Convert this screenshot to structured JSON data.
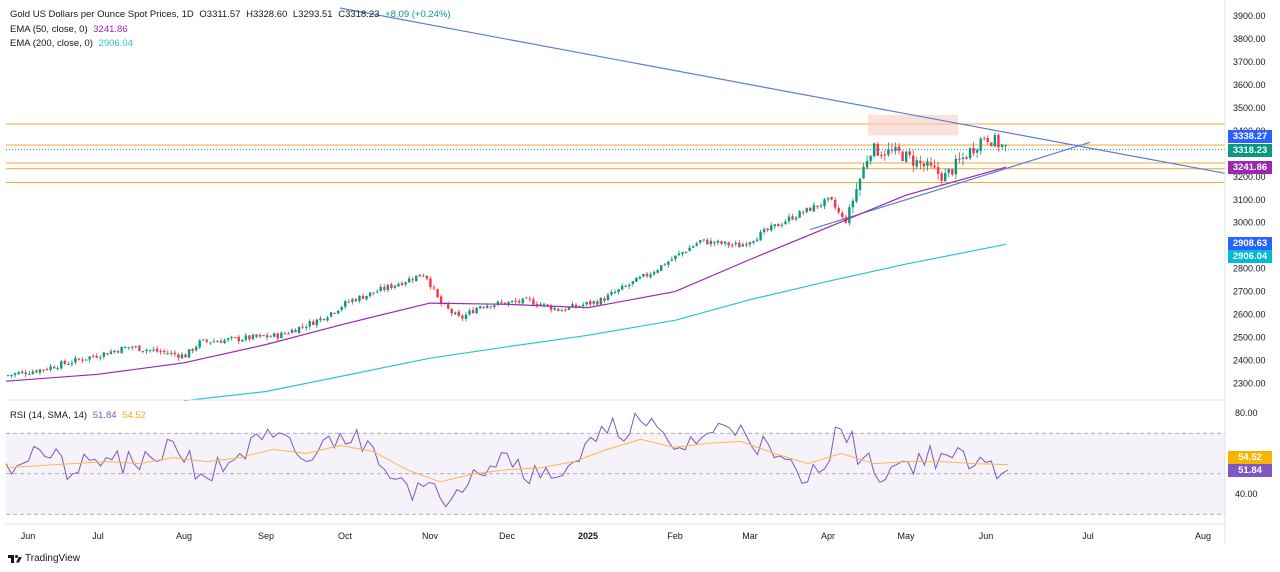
{
  "main_legend": {
    "title": "Gold US Dollars per Ounce Spot Prices, 1D",
    "o_label": "O",
    "o_value": "3311.57",
    "h_label": "H",
    "h_value": "3328.60",
    "l_label": "L",
    "l_value": "3293.51",
    "c_label": "C",
    "c_value": "3318.23",
    "change": "+8.09 (+0.24%)",
    "ema50_label": "EMA (50, close, 0)",
    "ema50_value": "3241.86",
    "ema200_label": "EMA (200, close, 0)",
    "ema200_value": "2906.04"
  },
  "rsi_legend": {
    "label": "RSI (14, SMA, 14)",
    "rsi_value": "51.84",
    "sma_value": "54.52"
  },
  "badges": {
    "resistance": "3338.27",
    "last_price": "3318.23",
    "ema50": "3241.86",
    "level_2908": "2908.63",
    "ema200": "2906.04",
    "rsi_sma": "54.52",
    "rsi": "51.84"
  },
  "brand": "TradingView",
  "colors": {
    "up": "#089981",
    "down": "#f23645",
    "ema50": "#9c27b0",
    "ema200": "#26c6da",
    "trendline": "#5b7fd6",
    "horizontal": "#f0a830",
    "rsi": "#7e57c2",
    "rsi_sma": "#ffb74d",
    "badge_blue": "#2962ff",
    "badge_teal": "#089981",
    "badge_purple": "#9c27b0",
    "badge_cyan": "#00bcd4",
    "badge_orange": "#f5b400"
  },
  "chart_data": [
    {
      "type": "candlestick",
      "title": "Gold US Dollars per Ounce Spot Prices, 1D",
      "y_ticks": [
        "3900.00",
        "3800.00",
        "3700.00",
        "3600.00",
        "3500.00",
        "3400.00",
        "3300.00",
        "3200.00",
        "3100.00",
        "3000.00",
        "2900.00",
        "2800.00",
        "2700.00",
        "2600.00",
        "2500.00",
        "2400.00",
        "2300.00"
      ],
      "x_ticks": [
        "Jun",
        "Jul",
        "Aug",
        "Sep",
        "Oct",
        "Nov",
        "Dec",
        "2025",
        "Feb",
        "Mar",
        "Apr",
        "May",
        "Jun",
        "Jul",
        "Aug"
      ],
      "ylim": [
        2250,
        3950
      ],
      "close_path": [
        [
          "Jun",
          2335
        ],
        [
          "Jul",
          2360
        ],
        [
          "Jul",
          2460
        ],
        [
          "Aug",
          2420
        ],
        [
          "Aug",
          2480
        ],
        [
          "Sep",
          2510
        ],
        [
          "Sep",
          2580
        ],
        [
          "Oct",
          2660
        ],
        [
          "Oct",
          2690
        ],
        [
          "Nov",
          2780
        ],
        [
          "Nov",
          2650
        ],
        [
          "Nov",
          2580
        ],
        [
          "Dec",
          2640
        ],
        [
          "Dec",
          2660
        ],
        [
          "2025",
          2620
        ],
        [
          "2025",
          2660
        ],
        [
          "Feb",
          2780
        ],
        [
          "Feb",
          2920
        ],
        [
          "Mar",
          2900
        ],
        [
          "Mar",
          3020
        ],
        [
          "Apr",
          3100
        ],
        [
          "Apr",
          3000
        ],
        [
          "Apr",
          3320
        ],
        [
          "May",
          3300
        ],
        [
          "May",
          3200
        ],
        [
          "Jun",
          3380
        ],
        [
          "Jun",
          3318.23
        ]
      ],
      "ema50_path": [
        [
          "Jun",
          2310
        ],
        [
          "Jul",
          2340
        ],
        [
          "Aug",
          2390
        ],
        [
          "Sep",
          2470
        ],
        [
          "Oct",
          2560
        ],
        [
          "Nov",
          2650
        ],
        [
          "Dec",
          2645
        ],
        [
          "2025",
          2630
        ],
        [
          "Feb",
          2700
        ],
        [
          "Mar",
          2840
        ],
        [
          "Apr",
          2980
        ],
        [
          "May",
          3120
        ],
        [
          "Jun",
          3241.86
        ]
      ],
      "ema200_path": [
        [
          "Aug",
          2225
        ],
        [
          "Sep",
          2265
        ],
        [
          "Oct",
          2335
        ],
        [
          "Nov",
          2410
        ],
        [
          "Dec",
          2460
        ],
        [
          "2025",
          2510
        ],
        [
          "Feb",
          2575
        ],
        [
          "Mar",
          2665
        ],
        [
          "Apr",
          2745
        ],
        [
          "May",
          2820
        ],
        [
          "Jun",
          2906.04
        ]
      ],
      "horizontal_levels": [
        3430,
        3338.27,
        3260,
        3235,
        3175
      ],
      "descending_trendline": [
        [
          "Sep",
          3970
        ],
        [
          "Aug",
          3215
        ]
      ],
      "ascending_trendline": [
        [
          "Mar",
          2970
        ],
        [
          "Jul",
          3350
        ]
      ],
      "last_price": 3318.23
    },
    {
      "type": "line",
      "title": "RSI (14, SMA, 14)",
      "y_ticks": [
        "80.00",
        "40.00"
      ],
      "ylim": [
        34,
        85
      ],
      "overbought": 70,
      "oversold": 30,
      "midline": 50,
      "series": [
        {
          "name": "RSI",
          "values": [
            55,
            62,
            50,
            58,
            52,
            66,
            48,
            60,
            68,
            56,
            70,
            63,
            45,
            38,
            52,
            60,
            48,
            56,
            70,
            76,
            62,
            70,
            74,
            58,
            46,
            72,
            50,
            56,
            60,
            54,
            51.84
          ]
        },
        {
          "name": "SMA",
          "values": [
            53,
            54,
            55,
            56,
            55,
            58,
            56,
            58,
            62,
            60,
            64,
            61,
            52,
            46,
            50,
            52,
            53,
            56,
            62,
            67,
            63,
            65,
            66,
            60,
            55,
            60,
            55,
            56,
            56,
            55,
            54.52
          ]
        }
      ]
    }
  ]
}
